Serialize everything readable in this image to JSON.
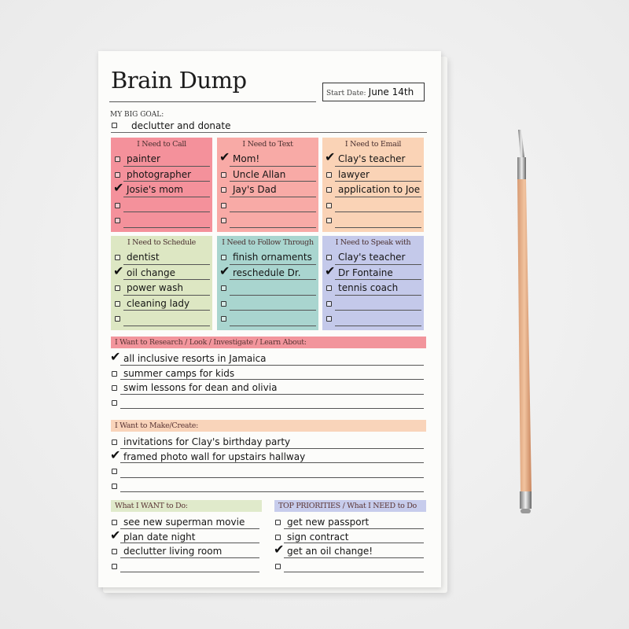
{
  "title": "Brain Dump",
  "start_date": {
    "label": "Start Date:",
    "value": "June 14th"
  },
  "big_goal": {
    "label": "MY BIG GOAL:",
    "item": {
      "text": "declutter and donate",
      "checked": false
    }
  },
  "colors": {
    "call": "#f4919b",
    "text": "#f8aaa6",
    "email": "#fad3b6",
    "schedule": "#dde7c3",
    "follow": "#a9d5cf",
    "speak": "#c4c9ea",
    "research": "#f2959c",
    "make": "#f9d4ba",
    "want": "#e0eacb",
    "priorities": "#c7ccec"
  },
  "boxes": [
    {
      "key": "call",
      "title": "I Need to Call",
      "items": [
        {
          "text": "painter",
          "checked": false
        },
        {
          "text": "photographer",
          "checked": false
        },
        {
          "text": "Josie's mom",
          "checked": true
        },
        {
          "text": "",
          "checked": false
        },
        {
          "text": "",
          "checked": false
        }
      ]
    },
    {
      "key": "text",
      "title": "I Need to Text",
      "items": [
        {
          "text": "Mom!",
          "checked": true
        },
        {
          "text": "Uncle Allan",
          "checked": false
        },
        {
          "text": "Jay's Dad",
          "checked": false
        },
        {
          "text": "",
          "checked": false
        },
        {
          "text": "",
          "checked": false
        }
      ]
    },
    {
      "key": "email",
      "title": "I Need to Email",
      "items": [
        {
          "text": "Clay's teacher",
          "checked": true
        },
        {
          "text": "lawyer",
          "checked": false
        },
        {
          "text": "application to Joe",
          "checked": false
        },
        {
          "text": "",
          "checked": false
        },
        {
          "text": "",
          "checked": false
        }
      ]
    },
    {
      "key": "schedule",
      "title": "I Need to Schedule",
      "items": [
        {
          "text": "dentist",
          "checked": false
        },
        {
          "text": "oil change",
          "checked": true
        },
        {
          "text": "power wash",
          "checked": false
        },
        {
          "text": "cleaning lady",
          "checked": false
        },
        {
          "text": "",
          "checked": false
        }
      ]
    },
    {
      "key": "follow",
      "title": "I Need to Follow Through",
      "items": [
        {
          "text": "finish ornaments",
          "checked": false
        },
        {
          "text": "reschedule Dr.",
          "checked": true
        },
        {
          "text": "",
          "checked": false
        },
        {
          "text": "",
          "checked": false
        },
        {
          "text": "",
          "checked": false
        }
      ]
    },
    {
      "key": "speak",
      "title": "I Need to Speak with",
      "items": [
        {
          "text": "Clay's teacher",
          "checked": false
        },
        {
          "text": "Dr Fontaine",
          "checked": true
        },
        {
          "text": "tennis coach",
          "checked": false
        },
        {
          "text": "",
          "checked": false
        },
        {
          "text": "",
          "checked": false
        }
      ]
    }
  ],
  "lists": [
    {
      "key": "research",
      "title": "I Want to Research / Look / Investigate / Learn About:",
      "items": [
        {
          "text": "all inclusive resorts in Jamaica",
          "checked": true
        },
        {
          "text": "summer camps for kids",
          "checked": false
        },
        {
          "text": "swim lessons for dean and olivia",
          "checked": false
        },
        {
          "text": "",
          "checked": false
        }
      ]
    },
    {
      "key": "make",
      "title": "I Want to Make/Create:",
      "items": [
        {
          "text": "invitations for Clay's birthday party",
          "checked": false
        },
        {
          "text": "framed photo wall for upstairs hallway",
          "checked": true
        },
        {
          "text": "",
          "checked": false
        },
        {
          "text": "",
          "checked": false
        }
      ]
    },
    {
      "key": "want",
      "title": "What I WANT to Do:",
      "items": [
        {
          "text": "see new superman movie",
          "checked": false
        },
        {
          "text": "plan date night",
          "checked": true
        },
        {
          "text": "declutter living room",
          "checked": false
        },
        {
          "text": "",
          "checked": false
        }
      ]
    },
    {
      "key": "priorities",
      "title": "TOP PRIORITIES / What I NEED to Do",
      "items": [
        {
          "text": "get new passport",
          "checked": false
        },
        {
          "text": "sign contract",
          "checked": false
        },
        {
          "text": "get an oil change!",
          "checked": true
        },
        {
          "text": "",
          "checked": false
        }
      ]
    }
  ]
}
